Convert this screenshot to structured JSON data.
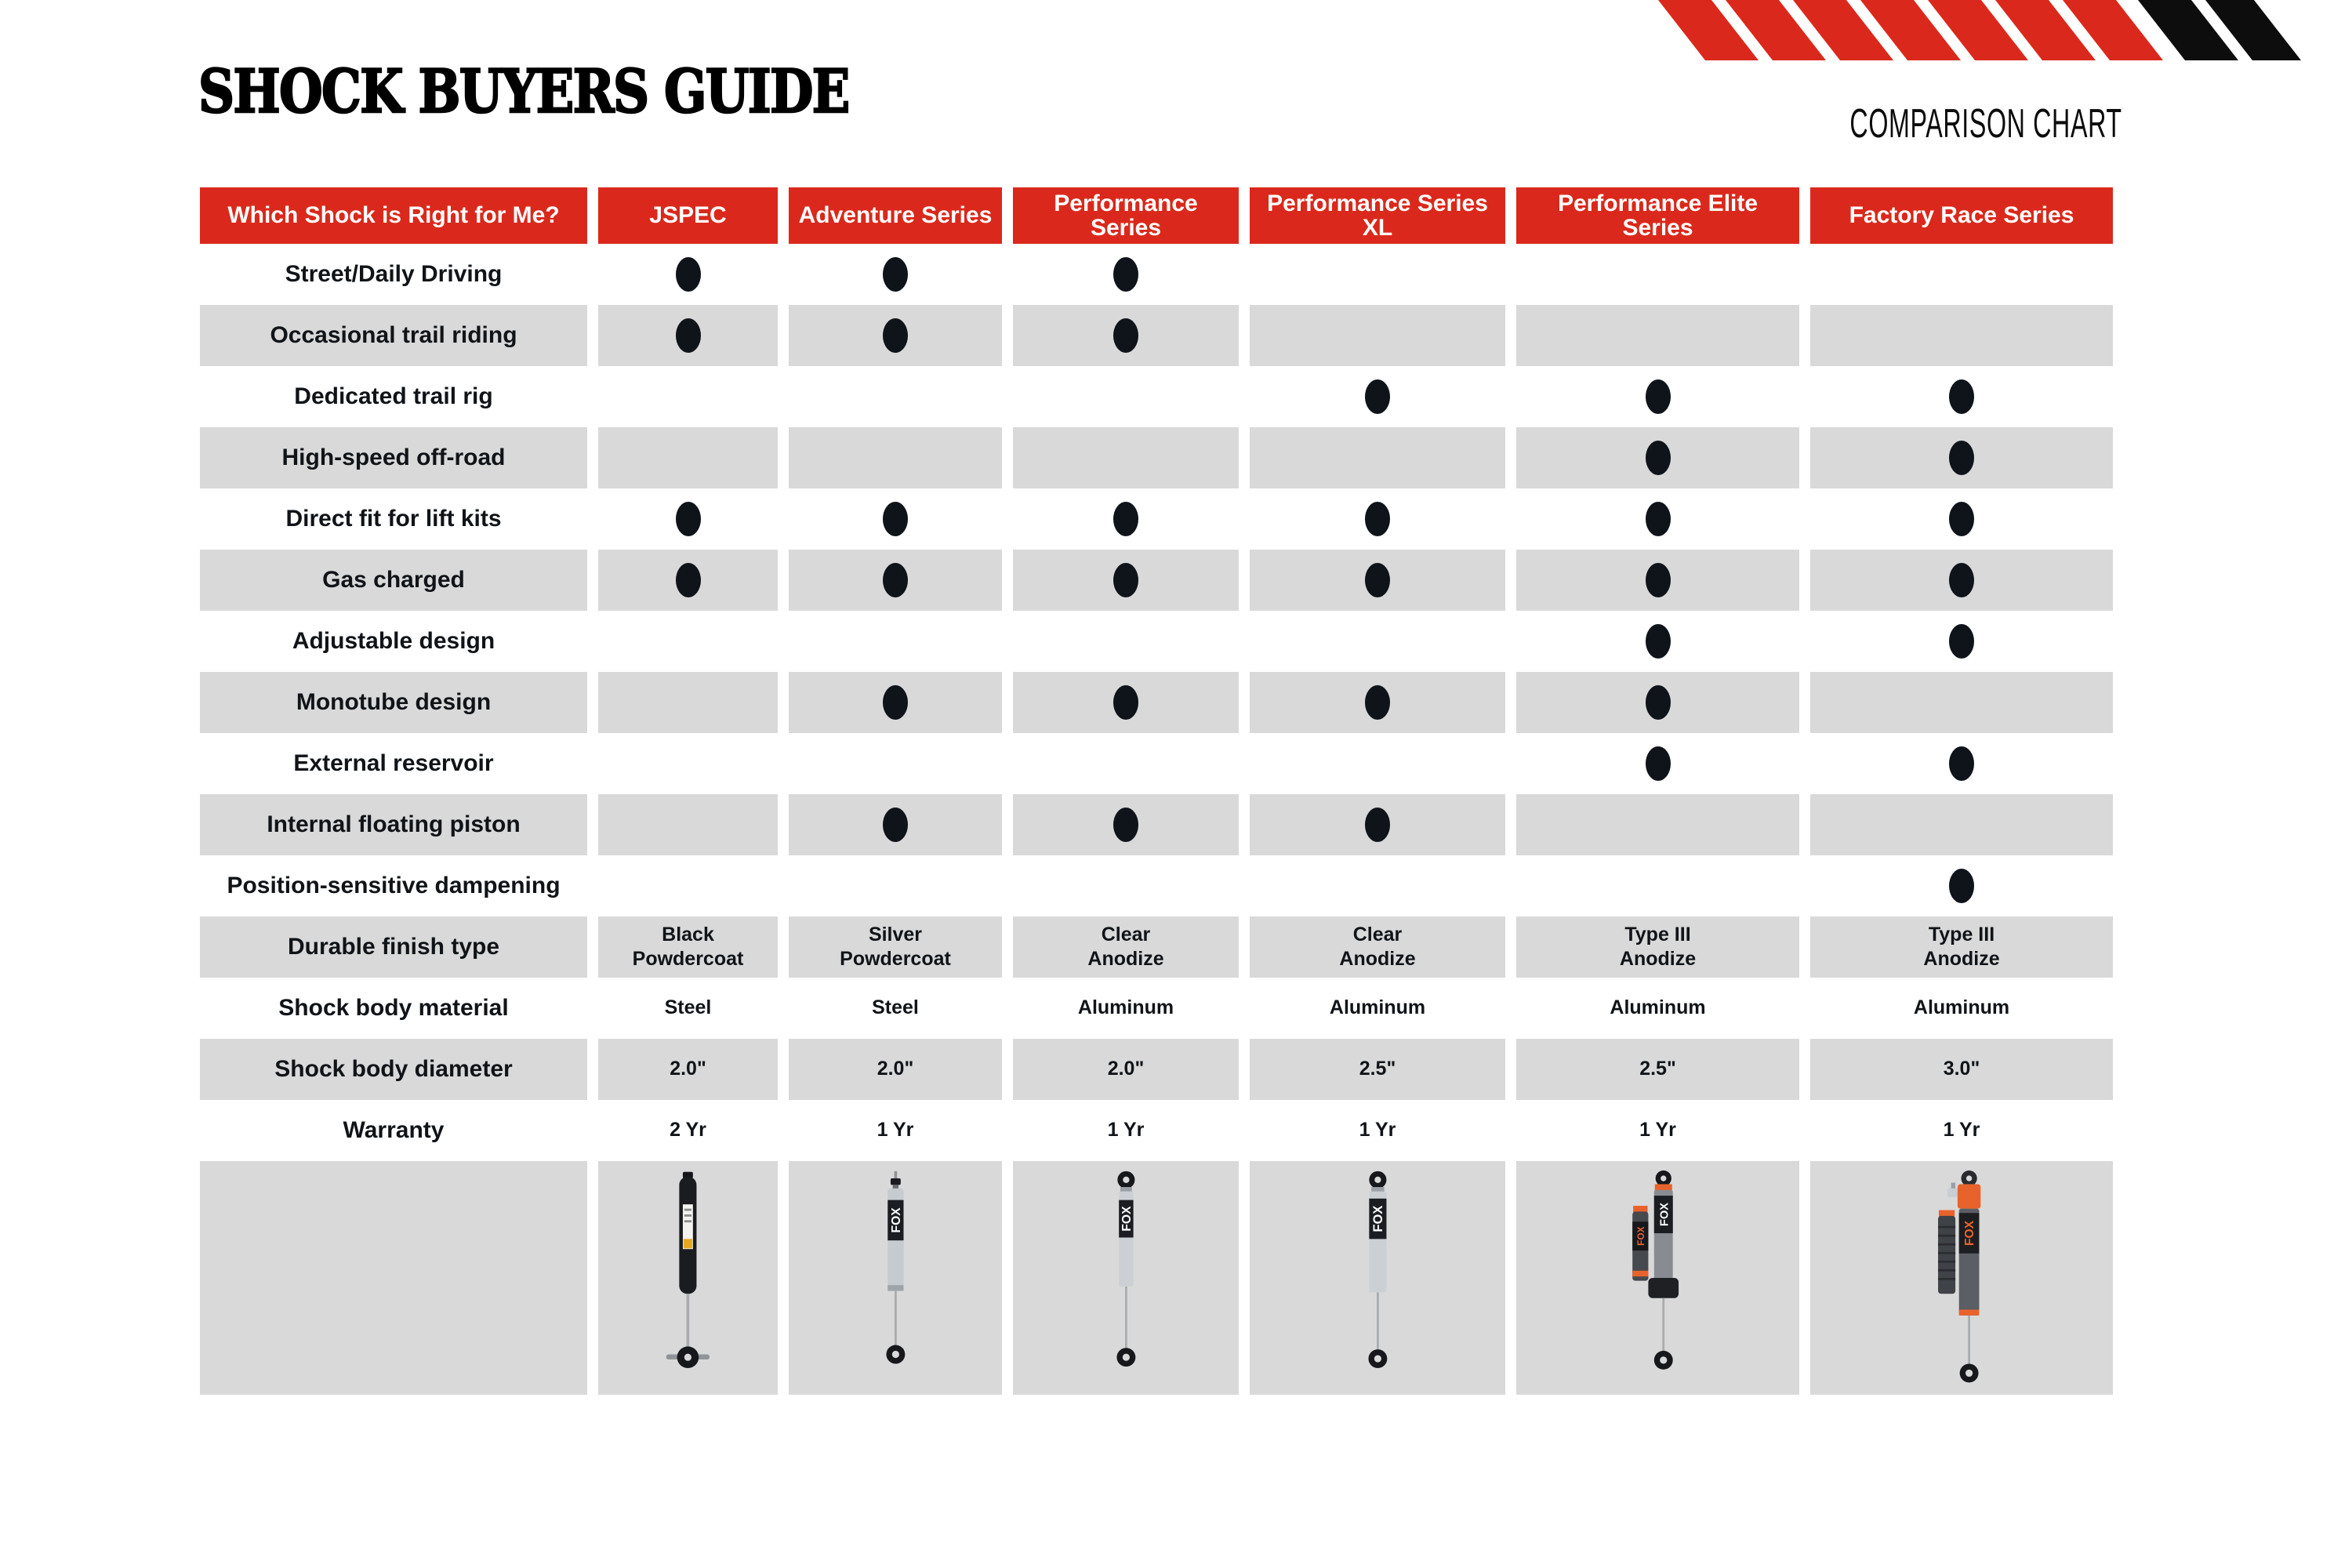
{
  "title": "SHOCK BUYERS GUIDE",
  "subtitle": "COMPARISON CHART",
  "colors": {
    "accent_red": "#da291c",
    "row_gray": "#d9d9d9",
    "dot_black": "#0f141b",
    "reservoir_orange": "#e8632b"
  },
  "table": {
    "header": [
      "Which Shock is Right for Me?",
      "JSPEC",
      "Adventure Series",
      "Performance Series",
      "Performance Series XL",
      "Performance Elite Series",
      "Factory Race Series"
    ],
    "feature_rows": [
      {
        "label": "Street/Daily Driving",
        "dots": [
          1,
          1,
          1,
          0,
          0,
          0
        ]
      },
      {
        "label": "Occasional trail riding",
        "dots": [
          1,
          1,
          1,
          0,
          0,
          0
        ]
      },
      {
        "label": "Dedicated trail rig",
        "dots": [
          0,
          0,
          0,
          1,
          1,
          1
        ]
      },
      {
        "label": "High-speed off-road",
        "dots": [
          0,
          0,
          0,
          0,
          1,
          1
        ]
      },
      {
        "label": "Direct fit for lift kits",
        "dots": [
          1,
          1,
          1,
          1,
          1,
          1
        ]
      },
      {
        "label": "Gas charged",
        "dots": [
          1,
          1,
          1,
          1,
          1,
          1
        ]
      },
      {
        "label": "Adjustable design",
        "dots": [
          0,
          0,
          0,
          0,
          1,
          1
        ]
      },
      {
        "label": "Monotube design",
        "dots": [
          0,
          1,
          1,
          1,
          1,
          0
        ]
      },
      {
        "label": "External reservoir",
        "dots": [
          0,
          0,
          0,
          0,
          1,
          1
        ]
      },
      {
        "label": "Internal floating piston",
        "dots": [
          0,
          1,
          1,
          1,
          0,
          0
        ]
      },
      {
        "label": "Position-sensitive dampening",
        "dots": [
          0,
          0,
          0,
          0,
          0,
          1
        ]
      }
    ],
    "spec_rows": [
      {
        "label": "Durable finish type",
        "values": [
          [
            "Black",
            "Powdercoat"
          ],
          [
            "Silver",
            "Powdercoat"
          ],
          [
            "Clear",
            "Anodize"
          ],
          [
            "Clear",
            "Anodize"
          ],
          [
            "Type III",
            "Anodize"
          ],
          [
            "Type III",
            "Anodize"
          ]
        ]
      },
      {
        "label": "Shock body material",
        "values": [
          [
            "Steel"
          ],
          [
            "Steel"
          ],
          [
            "Aluminum"
          ],
          [
            "Aluminum"
          ],
          [
            "Aluminum"
          ],
          [
            "Aluminum"
          ]
        ]
      },
      {
        "label": "Shock body diameter",
        "values": [
          [
            "2.0\""
          ],
          [
            "2.0\""
          ],
          [
            "2.0\""
          ],
          [
            "2.5\""
          ],
          [
            "2.5\""
          ],
          [
            "3.0\""
          ]
        ]
      },
      {
        "label": "Warranty",
        "values": [
          [
            "2 Yr"
          ],
          [
            "1 Yr"
          ],
          [
            "1 Yr"
          ],
          [
            "1 Yr"
          ],
          [
            "1 Yr"
          ],
          [
            "1 Yr"
          ]
        ]
      }
    ],
    "product_icons": [
      "jspec-shock-photo",
      "adventure-series-shock-photo",
      "performance-series-shock-photo",
      "performance-series-xl-shock-photo",
      "performance-elite-shock-photo",
      "factory-race-shock-photo"
    ]
  }
}
